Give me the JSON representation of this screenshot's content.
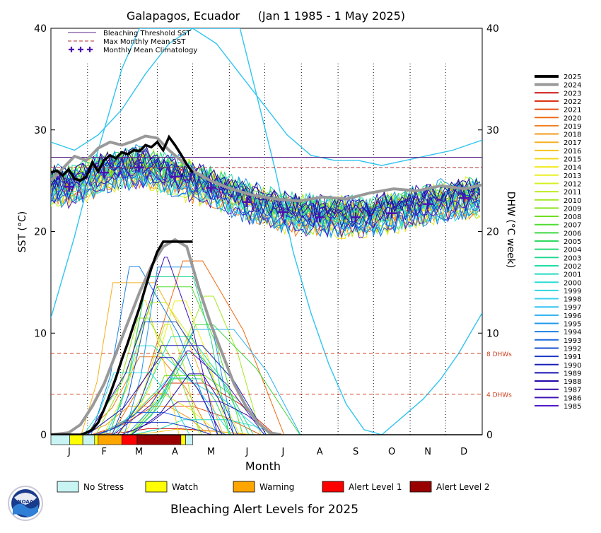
{
  "chart_data": {
    "type": "line",
    "title": "Galapagos, Ecuador     (Jan 1 1985 - 1 May 2025)",
    "xlabel": "Month",
    "ylabel_left": "SST (°C)",
    "ylabel_right": "DHW (°C week)",
    "ylim_left": [
      0,
      40
    ],
    "ylim_right": [
      0,
      40
    ],
    "yticks_left": [
      "0",
      "10",
      "20",
      "30",
      "40"
    ],
    "yticks_right": [
      "0",
      "10",
      "20",
      "30",
      "40"
    ],
    "months": [
      "J",
      "F",
      "M",
      "A",
      "M",
      "J",
      "J",
      "A",
      "S",
      "O",
      "N",
      "D"
    ],
    "bleaching_threshold_sst": 27.3,
    "max_monthly_mean_sst": 26.3,
    "climatology": [
      24.4,
      25.8,
      26.3,
      25.4,
      24.3,
      22.9,
      21.9,
      21.4,
      21.4,
      21.8,
      22.7,
      23.3
    ],
    "dhw_reference_lines": [
      {
        "value": 8,
        "label": "8 DHWs"
      },
      {
        "value": 4,
        "label": "4 DHWs"
      }
    ],
    "legend_lines": [
      {
        "label": "Bleaching Threshold SST",
        "color": "#5a2a8a"
      },
      {
        "label": "Max Monthly Mean SST",
        "color": "#b03030"
      },
      {
        "label": "Monthly Mean Climatology",
        "color": "#4b0fb0"
      }
    ],
    "years": [
      "2025",
      "2024",
      "2023",
      "2022",
      "2021",
      "2020",
      "2019",
      "2018",
      "2017",
      "2016",
      "2015",
      "2014",
      "2013",
      "2012",
      "2011",
      "2010",
      "2009",
      "2008",
      "2007",
      "2006",
      "2005",
      "2004",
      "2003",
      "2002",
      "2001",
      "2000",
      "1999",
      "1998",
      "1997",
      "1996",
      "1995",
      "1994",
      "1993",
      "1992",
      "1991",
      "1990",
      "1989",
      "1988",
      "1987",
      "1986",
      "1985"
    ],
    "year_colors": [
      "#000000",
      "#999999",
      "#cc1111",
      "#dd3311",
      "#e55010",
      "#ee6a10",
      "#f08020",
      "#f39a1a",
      "#f5b020",
      "#f5c41c",
      "#f0d81a",
      "#f0e81a",
      "#e8f020",
      "#d4f020",
      "#bcec20",
      "#a4e820",
      "#8ce420",
      "#6ee020",
      "#50dc30",
      "#3cd840",
      "#30d860",
      "#28d878",
      "#20d890",
      "#20dca8",
      "#20dcc0",
      "#28dcd4",
      "#30d8e0",
      "#38d0ec",
      "#30c4f0",
      "#28b0f0",
      "#2098ec",
      "#1c80e4",
      "#1a68dc",
      "#1850d0",
      "#1838c4",
      "#1820b8",
      "#1810b0",
      "#2008a8",
      "#3008a8",
      "#4010b8",
      "#5018c8"
    ],
    "series_2025_sst": [
      [
        0,
        25.8
      ],
      [
        5,
        26.0
      ],
      [
        10,
        25.5
      ],
      [
        15,
        26.1
      ],
      [
        20,
        25.2
      ],
      [
        25,
        25.0
      ],
      [
        30,
        25.4
      ],
      [
        35,
        26.8
      ],
      [
        40,
        25.9
      ],
      [
        45,
        27.0
      ],
      [
        50,
        27.5
      ],
      [
        55,
        27.2
      ],
      [
        60,
        27.8
      ],
      [
        65,
        27.6
      ],
      [
        70,
        28.0
      ],
      [
        75,
        27.9
      ],
      [
        80,
        28.5
      ],
      [
        85,
        28.3
      ],
      [
        90,
        28.8
      ],
      [
        95,
        28.0
      ],
      [
        100,
        29.3
      ],
      [
        105,
        28.5
      ],
      [
        110,
        27.6
      ],
      [
        115,
        26.6
      ],
      [
        120,
        25.8
      ]
    ],
    "series_2025_dhw": [
      [
        0,
        0
      ],
      [
        25,
        0
      ],
      [
        30,
        0.2
      ],
      [
        35,
        0.5
      ],
      [
        40,
        1.2
      ],
      [
        45,
        2.5
      ],
      [
        50,
        4.0
      ],
      [
        55,
        5.6
      ],
      [
        60,
        7.4
      ],
      [
        65,
        9.0
      ],
      [
        70,
        10.8
      ],
      [
        75,
        12.5
      ],
      [
        80,
        14.5
      ],
      [
        85,
        16.4
      ],
      [
        90,
        18.0
      ],
      [
        95,
        19.0
      ],
      [
        110,
        19.0
      ],
      [
        120,
        19.0
      ]
    ],
    "series_2024_sst": [
      [
        0,
        25.0
      ],
      [
        10,
        26.2
      ],
      [
        20,
        27.4
      ],
      [
        30,
        27.0
      ],
      [
        40,
        28.2
      ],
      [
        50,
        28.8
      ],
      [
        60,
        28.5
      ],
      [
        70,
        28.9
      ],
      [
        80,
        29.4
      ],
      [
        90,
        29.2
      ],
      [
        100,
        28.0
      ],
      [
        110,
        27.0
      ],
      [
        120,
        26.0
      ],
      [
        135,
        25.0
      ],
      [
        150,
        24.3
      ],
      [
        170,
        23.6
      ],
      [
        190,
        23.2
      ],
      [
        210,
        23.0
      ],
      [
        230,
        23.4
      ],
      [
        250,
        23.2
      ],
      [
        270,
        23.8
      ],
      [
        290,
        24.2
      ],
      [
        310,
        24.0
      ],
      [
        330,
        24.5
      ],
      [
        350,
        24.2
      ],
      [
        365,
        24.6
      ]
    ],
    "series_2024_dhw": [
      [
        0,
        0
      ],
      [
        15,
        0.2
      ],
      [
        25,
        1.0
      ],
      [
        35,
        2.8
      ],
      [
        45,
        5.0
      ],
      [
        55,
        8.0
      ],
      [
        65,
        11.0
      ],
      [
        75,
        14.0
      ],
      [
        85,
        16.6
      ],
      [
        95,
        18.5
      ],
      [
        105,
        19.2
      ],
      [
        115,
        18.5
      ],
      [
        125,
        14.5
      ],
      [
        135,
        11.0
      ],
      [
        145,
        8.0
      ],
      [
        155,
        5.0
      ],
      [
        165,
        2.8
      ],
      [
        175,
        1.2
      ],
      [
        185,
        0.2
      ],
      [
        195,
        0
      ]
    ],
    "series_1997_sst": [
      [
        0,
        28.8
      ],
      [
        20,
        28.0
      ],
      [
        40,
        29.5
      ],
      [
        60,
        32.0
      ],
      [
        80,
        35.5
      ],
      [
        100,
        38.5
      ],
      [
        120,
        40.0
      ],
      [
        140,
        38.5
      ],
      [
        160,
        35.5
      ],
      [
        180,
        32.5
      ],
      [
        200,
        29.5
      ],
      [
        220,
        27.5
      ],
      [
        240,
        27.0
      ],
      [
        260,
        27.0
      ],
      [
        280,
        26.5
      ],
      [
        300,
        27.0
      ],
      [
        320,
        27.5
      ],
      [
        340,
        28.0
      ],
      [
        365,
        29.0
      ]
    ],
    "series_1997_dhw": [
      [
        0,
        11.5
      ],
      [
        10,
        15.5
      ],
      [
        20,
        19.5
      ],
      [
        30,
        24.0
      ],
      [
        45,
        30.0
      ],
      [
        60,
        36.0
      ],
      [
        75,
        40.0
      ],
      [
        160,
        40.0
      ],
      [
        175,
        33.0
      ],
      [
        190,
        26.0
      ],
      [
        205,
        18.0
      ],
      [
        220,
        12.0
      ],
      [
        235,
        7.0
      ],
      [
        250,
        3.0
      ],
      [
        265,
        0.5
      ],
      [
        280,
        0.0
      ],
      [
        300,
        2.0
      ],
      [
        315,
        3.5
      ],
      [
        330,
        5.5
      ],
      [
        345,
        8.0
      ],
      [
        365,
        12.0
      ]
    ],
    "alert_bar": [
      {
        "start": 0,
        "end": 16,
        "level": "No Stress"
      },
      {
        "start": 16,
        "end": 27,
        "level": "Watch"
      },
      {
        "start": 27,
        "end": 37,
        "level": "No Stress"
      },
      {
        "start": 37,
        "end": 40,
        "level": "Watch"
      },
      {
        "start": 40,
        "end": 60,
        "level": "Warning"
      },
      {
        "start": 60,
        "end": 73,
        "level": "Alert Level 1"
      },
      {
        "start": 73,
        "end": 110,
        "level": "Alert Level 2"
      },
      {
        "start": 110,
        "end": 114,
        "level": "Watch"
      },
      {
        "start": 114,
        "end": 120,
        "level": "No Stress"
      }
    ],
    "alert_levels": [
      {
        "label": "No Stress",
        "color": "#c8f4f4"
      },
      {
        "label": "Watch",
        "color": "#ffff00"
      },
      {
        "label": "Warning",
        "color": "#ffa500"
      },
      {
        "label": "Alert Level 1",
        "color": "#ff0000"
      },
      {
        "label": "Alert Level 2",
        "color": "#990000"
      }
    ],
    "footer": "Bleaching Alert Levels for 2025",
    "logo_text": "NOAA"
  }
}
